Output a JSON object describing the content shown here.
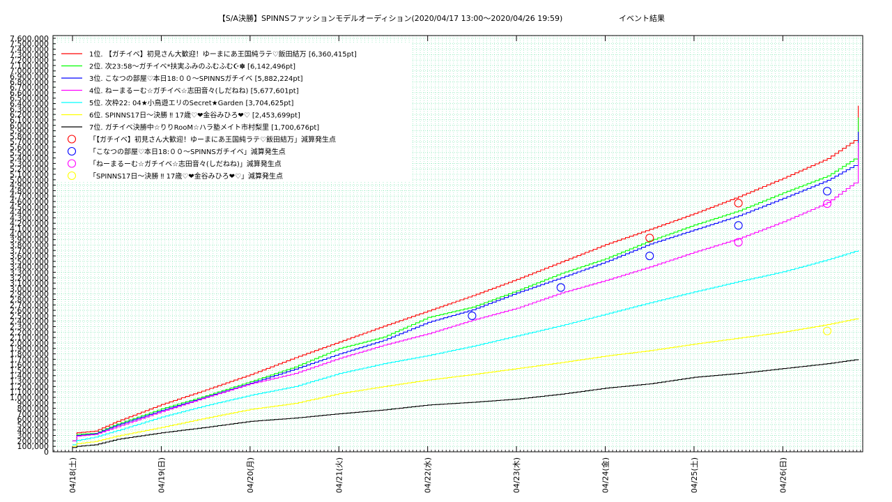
{
  "chart_data": {
    "type": "line",
    "title": "【S/A決勝】SPINNSファッションモデルオーディション(2020/04/17 13:00〜2020/04/26 19:59)",
    "subtitle": "イベント結果",
    "xlabel": "",
    "ylabel": "",
    "x_tick_labels": [
      "04/18(土)",
      "04/19(日)",
      "04/20(月)",
      "04/21(火)",
      "04/22(水)",
      "04/23(木)",
      "04/24(金)",
      "04/25(土)",
      "04/26(日)"
    ],
    "x_tick_values": [
      0,
      1,
      2,
      3,
      4,
      5,
      6,
      7,
      8
    ],
    "xlim": [
      -0.22,
      8.9
    ],
    "ylim": [
      0,
      7650000
    ],
    "y_tick_step": 100000,
    "y_tick_labels": [
      "0",
      "100,000",
      "200,000",
      "300,000",
      "400,000",
      "500,000",
      "600,000",
      "700,000",
      "800,000",
      "900,000",
      "1,000,000",
      "1,100,000",
      "1,200,000",
      "1,300,000",
      "1,400,000",
      "1,500,000",
      "1,600,000",
      "1,700,000",
      "1,800,000",
      "1,900,000",
      "2,000,000",
      "2,100,000",
      "2,200,000",
      "2,300,000",
      "2,400,000",
      "2,500,000",
      "2,600,000",
      "2,700,000",
      "2,800,000",
      "2,900,000",
      "3,000,000",
      "3,100,000",
      "3,200,000",
      "3,300,000",
      "3,400,000",
      "3,500,000",
      "3,600,000",
      "3,700,000",
      "3,800,000",
      "3,900,000",
      "4,000,000",
      "4,100,000",
      "4,200,000",
      "4,300,000",
      "4,400,000",
      "4,500,000",
      "4,600,000",
      "4,700,000",
      "4,800,000",
      "4,900,000",
      "5,000,000",
      "5,100,000",
      "5,200,000",
      "5,300,000",
      "5,400,000",
      "5,500,000",
      "5,600,000",
      "5,700,000",
      "5,800,000",
      "5,900,000",
      "6,000,000",
      "6,100,000",
      "6,200,000",
      "6,300,000",
      "6,400,000",
      "6,500,000",
      "6,600,000",
      "6,700,000",
      "6,800,000",
      "6,900,000",
      "7,000,000",
      "7,100,000",
      "7,200,000",
      "7,300,000",
      "7,400,000",
      "7,500,000",
      "7,600,000"
    ],
    "grid": true,
    "legend_position": "top-left",
    "series": [
      {
        "name": "1位. 【ガチイベ】初見さん大歓迎！ゆーまにあ王国純ラテ♡飯田結万 [6,360,415pt]",
        "color": "#ff0000",
        "x": [
          0,
          0.05,
          0.25,
          0.5,
          1.0,
          1.5,
          2.0,
          2.5,
          3.0,
          3.5,
          4.0,
          4.5,
          5.0,
          5.5,
          6.0,
          6.5,
          7.0,
          7.5,
          8.0,
          8.5,
          8.8,
          8.85
        ],
        "y": [
          200000,
          350000,
          380000,
          560000,
          870000,
          1140000,
          1420000,
          1730000,
          2020000,
          2310000,
          2590000,
          2870000,
          3170000,
          3490000,
          3810000,
          4090000,
          4380000,
          4690000,
          5030000,
          5390000,
          5720000,
          6360415
        ]
      },
      {
        "name": "2位. 次23:58〜ガチイベ*扶実ふみのふむふむ☪✽ [6,142,496pt]",
        "color": "#00ff00",
        "x": [
          0,
          0.05,
          0.25,
          0.5,
          1.0,
          1.5,
          2.0,
          2.5,
          3.0,
          3.5,
          4.0,
          4.5,
          5.0,
          5.5,
          6.0,
          6.5,
          7.0,
          7.5,
          8.0,
          8.5,
          8.8,
          8.85
        ],
        "y": [
          200000,
          320000,
          340000,
          510000,
          790000,
          1030000,
          1290000,
          1560000,
          1900000,
          2110000,
          2470000,
          2660000,
          2960000,
          3280000,
          3550000,
          3880000,
          4170000,
          4430000,
          4760000,
          5070000,
          5380000,
          6142496
        ]
      },
      {
        "name": "3位. こなつの部屋♡本日18:００〜SPINNSガチイベ [5,882,224pt]",
        "color": "#0000ff",
        "x": [
          0,
          0.05,
          0.25,
          0.5,
          1.0,
          1.5,
          2.0,
          2.5,
          3.0,
          3.5,
          4.0,
          4.5,
          5.0,
          5.5,
          6.0,
          6.5,
          7.0,
          7.5,
          8.0,
          8.5,
          8.8,
          8.85
        ],
        "y": [
          200000,
          300000,
          330000,
          490000,
          760000,
          1010000,
          1260000,
          1520000,
          1800000,
          2050000,
          2380000,
          2610000,
          2920000,
          3200000,
          3490000,
          3820000,
          4080000,
          4340000,
          4660000,
          4990000,
          5260000,
          5882224
        ]
      },
      {
        "name": "4位. ねーまるーむ☆ガチイベ☆志田音々(しだねね) [5,677,601pt]",
        "color": "#ff00ff",
        "x": [
          0,
          0.05,
          0.25,
          0.5,
          1.0,
          1.5,
          2.0,
          2.5,
          3.0,
          3.5,
          4.0,
          4.5,
          5.0,
          5.5,
          6.0,
          6.5,
          7.0,
          7.5,
          8.0,
          8.5,
          8.8,
          8.85
        ],
        "y": [
          200000,
          290000,
          320000,
          460000,
          740000,
          1000000,
          1250000,
          1440000,
          1720000,
          1960000,
          2170000,
          2420000,
          2640000,
          2920000,
          3150000,
          3400000,
          3670000,
          3920000,
          4230000,
          4580000,
          4940000,
          5677601
        ]
      },
      {
        "name": "5位. 次枠22: 04★小鳥遊エリのSecret★Garden [3,704,625pt]",
        "color": "#00ffff",
        "x": [
          0,
          0.05,
          0.25,
          0.5,
          1.0,
          1.5,
          2.0,
          2.5,
          3.0,
          3.5,
          4.0,
          4.5,
          5.0,
          5.5,
          6.0,
          6.5,
          7.0,
          7.5,
          8.0,
          8.5,
          8.85
        ],
        "y": [
          130000,
          210000,
          270000,
          390000,
          640000,
          850000,
          1040000,
          1200000,
          1440000,
          1620000,
          1770000,
          1940000,
          2130000,
          2320000,
          2530000,
          2740000,
          2940000,
          3130000,
          3310000,
          3530000,
          3704625
        ]
      },
      {
        "name": "6位. SPINNS17日〜決勝 ‼ 17歳♡❤金谷みひろ❤♡ [2,453,699pt]",
        "color": "#ffff00",
        "x": [
          0,
          0.05,
          0.25,
          0.5,
          1.0,
          1.5,
          2.0,
          2.5,
          3.0,
          3.5,
          4.0,
          4.5,
          5.0,
          5.5,
          6.0,
          6.5,
          7.0,
          7.5,
          8.0,
          8.5,
          8.85
        ],
        "y": [
          100000,
          150000,
          190000,
          290000,
          450000,
          620000,
          780000,
          890000,
          1070000,
          1200000,
          1320000,
          1420000,
          1530000,
          1640000,
          1760000,
          1860000,
          1980000,
          2090000,
          2200000,
          2340000,
          2453699
        ]
      },
      {
        "name": "7位. ガチイベ決勝中☆りりRooM☆ハラ塾メイト市村梨里 [1,700,676pt]",
        "color": "#000000",
        "x": [
          0,
          0.05,
          0.25,
          0.5,
          1.0,
          1.5,
          2.0,
          2.5,
          3.0,
          3.5,
          4.0,
          4.5,
          5.0,
          5.5,
          6.0,
          6.5,
          7.0,
          7.5,
          8.0,
          8.5,
          8.85
        ],
        "y": [
          80000,
          100000,
          130000,
          230000,
          350000,
          450000,
          560000,
          620000,
          700000,
          770000,
          860000,
          910000,
          970000,
          1060000,
          1170000,
          1250000,
          1370000,
          1440000,
          1530000,
          1620000,
          1700676
        ]
      }
    ],
    "markers": [
      {
        "name": "「【ガチイベ】初見さん大歓迎！ゆーまにあ王国純ラテ♡飯田結万」減算発生点",
        "color": "#ff0000",
        "points": [
          [
            6.5,
            3930000
          ],
          [
            7.5,
            4570000
          ]
        ]
      },
      {
        "name": "「こなつの部屋♡本日18:００〜SPINNSガチイベ」減算発生点",
        "color": "#0000ff",
        "points": [
          [
            4.5,
            2500000
          ],
          [
            5.5,
            3020000
          ],
          [
            6.5,
            3600000
          ],
          [
            7.5,
            4160000
          ],
          [
            8.5,
            4790000
          ]
        ]
      },
      {
        "name": "「ねーまるーむ☆ガチイベ☆志田音々(しだねね)」減算発生点",
        "color": "#ff00ff",
        "points": [
          [
            7.5,
            3850000
          ],
          [
            8.5,
            4560000
          ]
        ]
      },
      {
        "name": "「SPINNS17日〜決勝 ‼ 17歳♡❤金谷みひろ❤♡」減算発生点",
        "color": "#ffff00",
        "points": [
          [
            8.5,
            2220000
          ]
        ]
      }
    ],
    "grid_color": "#00cc66",
    "plot_bg": "#ffffff"
  }
}
